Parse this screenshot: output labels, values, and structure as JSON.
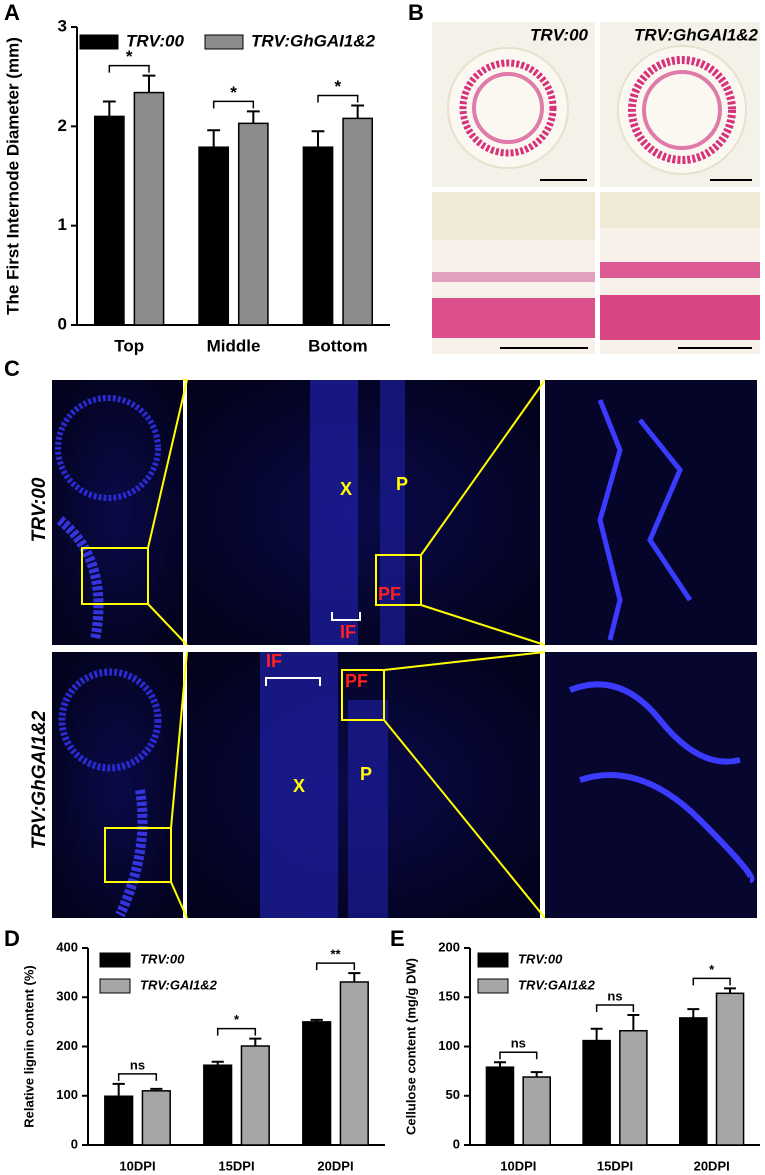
{
  "chart_data": [
    {
      "type": "bar",
      "ylabel": "The First Internode Diameter (mm)",
      "categories": [
        "Top",
        "Middle",
        "Bottom"
      ],
      "series": [
        {
          "name": "TRV:00",
          "color": "#000000",
          "values": [
            2.1,
            1.79,
            1.79
          ],
          "errors": [
            0.15,
            0.17,
            0.16
          ]
        },
        {
          "name": "TRV:GhGAI1&2",
          "color": "#8c8c8c",
          "values": [
            2.34,
            2.03,
            2.08
          ],
          "errors": [
            0.17,
            0.12,
            0.13
          ]
        }
      ],
      "significance": [
        "*",
        "*",
        "*"
      ],
      "ylim": [
        0,
        3
      ],
      "yticks": [
        0,
        1,
        2,
        3
      ],
      "legend": "top"
    },
    {
      "type": "bar",
      "ylabel": "Relative lignin content (%)",
      "categories": [
        "10DPI",
        "15DPI",
        "20DPI"
      ],
      "series": [
        {
          "name": "TRV:00",
          "color": "#000000",
          "values": [
            99,
            162,
            250
          ],
          "errors": [
            25,
            7,
            4
          ]
        },
        {
          "name": "TRV:GAI1&2",
          "color": "#a6a6a6",
          "values": [
            110,
            201,
            331
          ],
          "errors": [
            4,
            15,
            18
          ]
        }
      ],
      "significance": [
        "ns",
        "*",
        "**"
      ],
      "ylim": [
        0,
        400
      ],
      "yticks": [
        0,
        100,
        200,
        300,
        400
      ],
      "legend": "top-left"
    },
    {
      "type": "bar",
      "ylabel": "Cellulose content (mg/g DW)",
      "categories": [
        "10DPI",
        "15DPI",
        "20DPI"
      ],
      "series": [
        {
          "name": "TRV:00",
          "color": "#000000",
          "values": [
            79,
            106,
            129
          ],
          "errors": [
            5,
            12,
            9
          ]
        },
        {
          "name": "TRV:GAI1&2",
          "color": "#a6a6a6",
          "values": [
            69,
            116,
            154
          ],
          "errors": [
            5,
            16,
            5
          ]
        }
      ],
      "significance": [
        "ns",
        "ns",
        "*"
      ],
      "ylim": [
        0,
        200
      ],
      "yticks": [
        0,
        50,
        100,
        150,
        200
      ],
      "legend": "top-left"
    }
  ],
  "figure": {
    "panels": [
      "A",
      "B",
      "C",
      "D",
      "E"
    ],
    "b_labels": [
      "TRV:00",
      "TRV:GhGAI1&2"
    ],
    "c_rows": [
      "TRV:00",
      "TRV:GhGAI1&2"
    ],
    "c_marks": [
      "X",
      "P",
      "PF",
      "IF"
    ]
  }
}
